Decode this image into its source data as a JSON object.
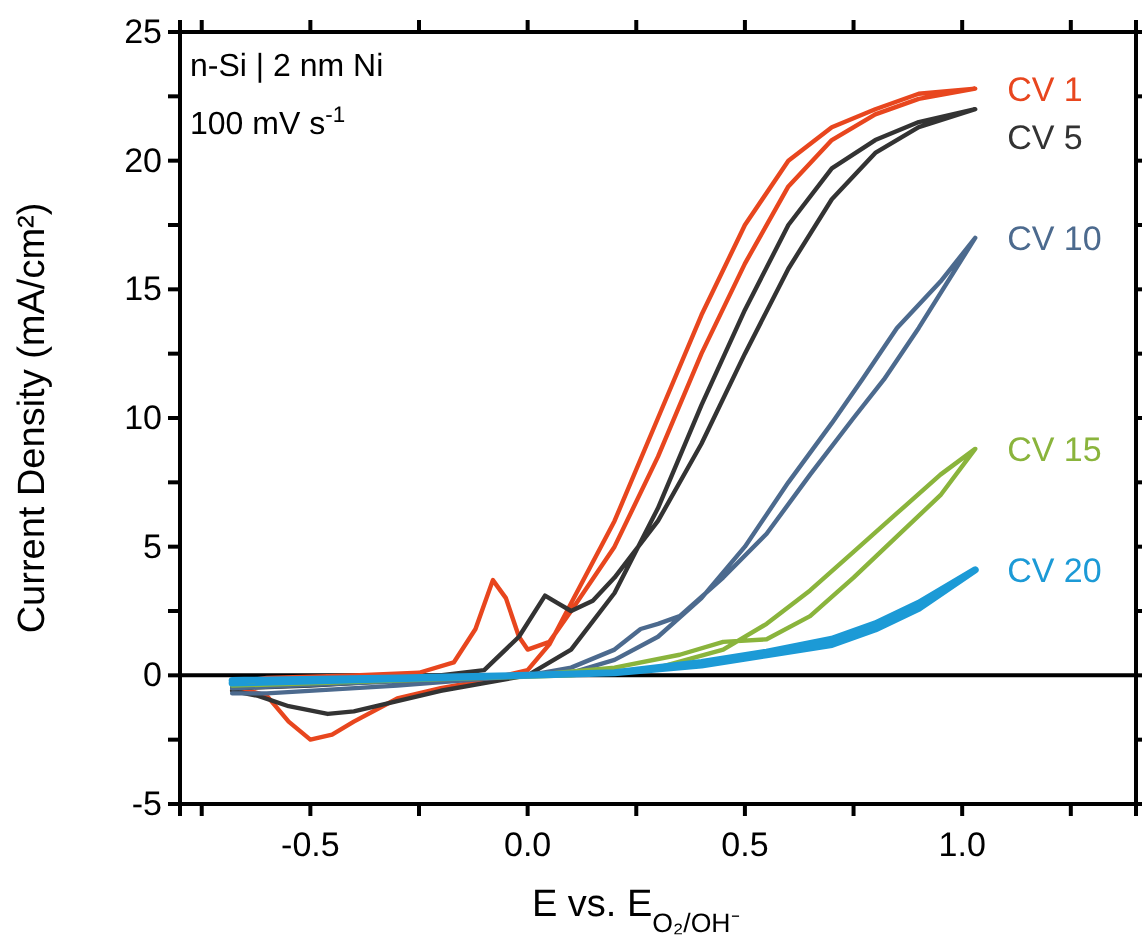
{
  "chart_data": {
    "type": "line",
    "xlabel": "E vs. E$_{O₂/OH⁻}$",
    "ylabel": "Current Density (mA/cm²)",
    "annotations": [
      "n-Si | 2 nm Ni",
      "100 mV s$^{-1}$"
    ],
    "xlim": [
      -0.8,
      1.4
    ],
    "ylim": [
      -5,
      25
    ],
    "xticks": [
      {
        "value": -0.75,
        "label": null
      },
      {
        "value": -0.5,
        "label": "-0.5"
      },
      {
        "value": -0.25,
        "label": null
      },
      {
        "value": 0,
        "label": "0.0"
      },
      {
        "value": 0.25,
        "label": null
      },
      {
        "value": 0.5,
        "label": "0.5"
      },
      {
        "value": 0.75,
        "label": null
      },
      {
        "value": 1.0,
        "label": "1.0"
      },
      {
        "value": 1.25,
        "label": null
      }
    ],
    "yticks": [
      -5,
      {
        "value": -2.5,
        "label": null
      },
      0,
      {
        "value": 2.5,
        "label": null
      },
      5,
      {
        "value": 7.5,
        "label": null
      },
      10,
      {
        "value": 12.5,
        "label": null
      },
      15,
      {
        "value": 17.5,
        "label": null
      },
      20,
      {
        "value": 22.5,
        "label": null
      },
      25
    ],
    "ref_lines": [
      {
        "axis": "y",
        "value": 0,
        "color": "#000000"
      }
    ],
    "series": [
      {
        "name": "CV 1",
        "color": "#e8461e",
        "x": [
          -0.68,
          -0.6,
          -0.4,
          -0.25,
          -0.17,
          -0.12,
          -0.08,
          -0.05,
          -0.02,
          0.0,
          0.05,
          0.1,
          0.2,
          0.3,
          0.4,
          0.5,
          0.6,
          0.7,
          0.8,
          0.9,
          1.03,
          0.9,
          0.8,
          0.7,
          0.6,
          0.5,
          0.4,
          0.3,
          0.2,
          0.1,
          0.05,
          0.0,
          -0.1,
          -0.2,
          -0.3,
          -0.4,
          -0.45,
          -0.5,
          -0.55,
          -0.6,
          -0.68
        ],
        "values": [
          -0.3,
          -0.1,
          0.0,
          0.1,
          0.5,
          1.8,
          3.7,
          3.0,
          1.5,
          1.0,
          1.3,
          2.5,
          5.0,
          8.5,
          12.5,
          16.0,
          19.0,
          20.8,
          21.8,
          22.4,
          22.8,
          22.6,
          22.0,
          21.3,
          20.0,
          17.5,
          14.0,
          10.0,
          6.0,
          2.8,
          1.2,
          0.2,
          -0.2,
          -0.5,
          -0.9,
          -1.8,
          -2.3,
          -2.5,
          -1.8,
          -0.8,
          -0.4
        ]
      },
      {
        "name": "CV 5",
        "color": "#333333",
        "x": [
          -0.68,
          -0.5,
          -0.3,
          -0.1,
          -0.02,
          0.04,
          0.07,
          0.1,
          0.15,
          0.2,
          0.3,
          0.4,
          0.5,
          0.6,
          0.7,
          0.8,
          0.9,
          1.03,
          0.9,
          0.8,
          0.7,
          0.6,
          0.5,
          0.4,
          0.3,
          0.2,
          0.1,
          0.0,
          -0.1,
          -0.2,
          -0.3,
          -0.4,
          -0.46,
          -0.55,
          -0.62,
          -0.68
        ],
        "values": [
          -0.5,
          -0.4,
          -0.2,
          0.2,
          1.5,
          3.1,
          2.8,
          2.5,
          2.9,
          3.8,
          6.0,
          9.0,
          12.5,
          15.8,
          18.5,
          20.3,
          21.3,
          22.0,
          21.5,
          20.8,
          19.7,
          17.5,
          14.2,
          10.5,
          6.5,
          3.2,
          1.0,
          0.0,
          -0.3,
          -0.6,
          -1.0,
          -1.4,
          -1.5,
          -1.2,
          -0.8,
          -0.6
        ]
      },
      {
        "name": "CV 10",
        "color": "#4c6a8e",
        "x": [
          -0.68,
          -0.4,
          -0.1,
          0.0,
          0.1,
          0.2,
          0.26,
          0.3,
          0.35,
          0.45,
          0.55,
          0.65,
          0.75,
          0.82,
          0.9,
          1.03,
          0.95,
          0.85,
          0.77,
          0.7,
          0.6,
          0.5,
          0.4,
          0.3,
          0.2,
          0.1,
          0.0,
          -0.3,
          -0.6,
          -0.68
        ],
        "values": [
          -0.5,
          -0.3,
          -0.1,
          0.0,
          0.3,
          1.0,
          1.8,
          2.0,
          2.3,
          3.8,
          5.5,
          7.8,
          10.0,
          11.5,
          13.5,
          17.0,
          15.3,
          13.5,
          11.5,
          9.8,
          7.5,
          5.0,
          3.0,
          1.5,
          0.6,
          0.1,
          0.0,
          -0.4,
          -0.7,
          -0.7
        ]
      },
      {
        "name": "CV 15",
        "color": "#8ab43c",
        "x": [
          -0.68,
          -0.3,
          0.0,
          0.2,
          0.35,
          0.45,
          0.55,
          0.65,
          0.75,
          0.85,
          0.95,
          1.03,
          0.95,
          0.85,
          0.75,
          0.65,
          0.55,
          0.45,
          0.3,
          0.1,
          -0.3,
          -0.68
        ],
        "values": [
          -0.3,
          -0.1,
          0.0,
          0.3,
          0.8,
          1.3,
          1.4,
          2.3,
          3.8,
          5.4,
          7.0,
          8.8,
          7.8,
          6.3,
          4.8,
          3.3,
          2.0,
          1.0,
          0.3,
          0.0,
          -0.2,
          -0.4
        ]
      },
      {
        "name": "CV 20",
        "color": "#1c9ad6",
        "x": [
          -0.68,
          -0.3,
          0.0,
          0.2,
          0.4,
          0.55,
          0.7,
          0.8,
          0.9,
          1.03,
          0.9,
          0.8,
          0.7,
          0.55,
          0.4,
          0.2,
          0.0,
          -0.68
        ],
        "values": [
          -0.2,
          -0.1,
          0.0,
          0.1,
          0.4,
          0.8,
          1.2,
          1.8,
          2.6,
          4.1,
          2.8,
          2.0,
          1.4,
          0.9,
          0.5,
          0.1,
          0.0,
          -0.3
        ]
      }
    ]
  }
}
